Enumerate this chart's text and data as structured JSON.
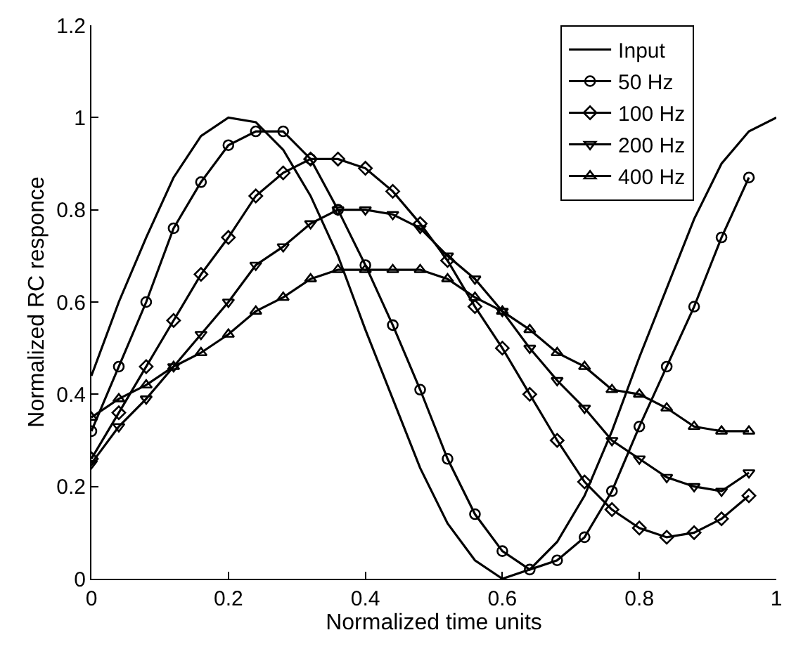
{
  "chart_data": {
    "type": "line",
    "xlabel": "Normalized time units",
    "ylabel": "Normalized RC responce",
    "xlim": [
      0,
      1
    ],
    "ylim": [
      0,
      1.2
    ],
    "xticks": [
      0,
      0.2,
      0.4,
      0.6,
      0.8,
      1
    ],
    "yticks": [
      0,
      0.2,
      0.4,
      0.6,
      0.8,
      1,
      1.2
    ],
    "grid": false,
    "legend": "top right",
    "line_style": "solid",
    "x": [
      0,
      0.04,
      0.08,
      0.12,
      0.16,
      0.2,
      0.24,
      0.28,
      0.32,
      0.36,
      0.4,
      0.44,
      0.48,
      0.52,
      0.56,
      0.6,
      0.64,
      0.68,
      0.72,
      0.76,
      0.8,
      0.84,
      0.88,
      0.92,
      0.96
    ],
    "series": [
      {
        "name": "Input",
        "color": "#000000",
        "marker": "none",
        "x": [
          0,
          0.04,
          0.08,
          0.12,
          0.16,
          0.2,
          0.24,
          0.28,
          0.32,
          0.36,
          0.4,
          0.44,
          0.48,
          0.52,
          0.56,
          0.6,
          0.64,
          0.68,
          0.72,
          0.76,
          0.8,
          0.84,
          0.88,
          0.92,
          0.96,
          1
        ],
        "values": [
          0.44,
          0.6,
          0.74,
          0.87,
          0.96,
          1,
          0.99,
          0.93,
          0.83,
          0.7,
          0.54,
          0.39,
          0.24,
          0.12,
          0.04,
          0,
          0.02,
          0.08,
          0.18,
          0.32,
          0.48,
          0.63,
          0.78,
          0.9,
          0.97,
          1
        ]
      },
      {
        "name": "50 Hz",
        "color": "#000000",
        "marker": "circle",
        "values": [
          0.32,
          0.46,
          0.6,
          0.76,
          0.86,
          0.94,
          0.97,
          0.97,
          0.91,
          0.8,
          0.68,
          0.55,
          0.41,
          0.26,
          0.14,
          0.06,
          0.02,
          0.04,
          0.09,
          0.19,
          0.33,
          0.46,
          0.59,
          0.74,
          0.87
        ]
      },
      {
        "name": "100 Hz",
        "color": "#000000",
        "marker": "diamond",
        "values": [
          0.26,
          0.36,
          0.46,
          0.56,
          0.66,
          0.74,
          0.83,
          0.88,
          0.91,
          0.91,
          0.89,
          0.84,
          0.77,
          0.69,
          0.59,
          0.5,
          0.4,
          0.3,
          0.21,
          0.15,
          0.11,
          0.09,
          0.1,
          0.13,
          0.18
        ]
      },
      {
        "name": "200 Hz",
        "color": "#000000",
        "marker": "triangle-down",
        "values": [
          0.25,
          0.33,
          0.39,
          0.46,
          0.53,
          0.6,
          0.68,
          0.72,
          0.77,
          0.8,
          0.8,
          0.79,
          0.76,
          0.7,
          0.65,
          0.58,
          0.5,
          0.43,
          0.37,
          0.3,
          0.26,
          0.22,
          0.2,
          0.19,
          0.23
        ]
      },
      {
        "name": "400 Hz",
        "color": "#000000",
        "marker": "triangle",
        "values": [
          0.35,
          0.39,
          0.42,
          0.46,
          0.49,
          0.53,
          0.58,
          0.61,
          0.65,
          0.67,
          0.67,
          0.67,
          0.67,
          0.65,
          0.61,
          0.58,
          0.54,
          0.49,
          0.46,
          0.41,
          0.4,
          0.37,
          0.33,
          0.32,
          0.32
        ]
      }
    ]
  }
}
